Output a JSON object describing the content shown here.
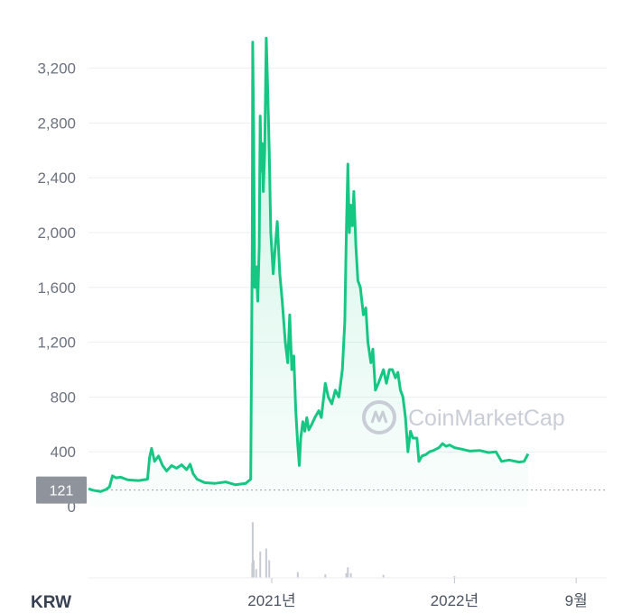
{
  "currency_label": "KRW",
  "watermark": "CoinMarketCap",
  "current_price_label": "121",
  "colors": {
    "line": "#16c784",
    "area_top": "#16c784",
    "grid": "#eceef2",
    "badge": "#8f949c",
    "volume": "#c7ccd4",
    "watermark": "#c9cdd6"
  },
  "icons": {
    "watermark_logo": "coinmarketcap-logo-icon"
  },
  "chart_data": {
    "type": "area",
    "title": "",
    "xlabel": "",
    "ylabel": "",
    "ylim": [
      0,
      3500
    ],
    "yticks": [
      {
        "value": 0,
        "label": "0"
      },
      {
        "value": 400,
        "label": "400"
      },
      {
        "value": 800,
        "label": "800"
      },
      {
        "value": 1200,
        "label": "1,200"
      },
      {
        "value": 1600,
        "label": "1,600"
      },
      {
        "value": 2000,
        "label": "2,000"
      },
      {
        "value": 2400,
        "label": "2,400"
      },
      {
        "value": 2800,
        "label": "2,800"
      },
      {
        "value": 3200,
        "label": "3,200"
      }
    ],
    "x_range": [
      "2020-01-01",
      "2022-11-01"
    ],
    "xticks": [
      {
        "date": "2021-01-01",
        "label": "2021년"
      },
      {
        "date": "2022-01-01",
        "label": "2022년"
      },
      {
        "date": "2022-09-01",
        "label": "9월"
      }
    ],
    "current_value": 121,
    "series": [
      {
        "points": [
          [
            "2020-01-01",
            130
          ],
          [
            "2020-01-10",
            120
          ],
          [
            "2020-01-25",
            110
          ],
          [
            "2020-02-05",
            125
          ],
          [
            "2020-02-12",
            145
          ],
          [
            "2020-02-18",
            225
          ],
          [
            "2020-02-25",
            210
          ],
          [
            "2020-03-05",
            215
          ],
          [
            "2020-03-20",
            195
          ],
          [
            "2020-04-10",
            190
          ],
          [
            "2020-04-28",
            200
          ],
          [
            "2020-05-02",
            360
          ],
          [
            "2020-05-06",
            425
          ],
          [
            "2020-05-12",
            330
          ],
          [
            "2020-05-20",
            370
          ],
          [
            "2020-05-28",
            300
          ],
          [
            "2020-06-05",
            260
          ],
          [
            "2020-06-15",
            300
          ],
          [
            "2020-06-25",
            280
          ],
          [
            "2020-07-05",
            305
          ],
          [
            "2020-07-15",
            270
          ],
          [
            "2020-07-22",
            310
          ],
          [
            "2020-07-28",
            240
          ],
          [
            "2020-08-05",
            200
          ],
          [
            "2020-08-20",
            175
          ],
          [
            "2020-09-10",
            170
          ],
          [
            "2020-10-01",
            180
          ],
          [
            "2020-10-20",
            160
          ],
          [
            "2020-11-10",
            170
          ],
          [
            "2020-11-20",
            200
          ],
          [
            "2020-11-23",
            1900
          ],
          [
            "2020-11-24",
            3390
          ],
          [
            "2020-11-26",
            2700
          ],
          [
            "2020-11-28",
            1600
          ],
          [
            "2020-12-01",
            1750
          ],
          [
            "2020-12-04",
            1500
          ],
          [
            "2020-12-07",
            1900
          ],
          [
            "2020-12-09",
            2850
          ],
          [
            "2020-12-11",
            2450
          ],
          [
            "2020-12-13",
            2650
          ],
          [
            "2020-12-15",
            2300
          ],
          [
            "2020-12-18",
            2600
          ],
          [
            "2020-12-21",
            3420
          ],
          [
            "2020-12-24",
            3050
          ],
          [
            "2020-12-27",
            2600
          ],
          [
            "2020-12-30",
            2000
          ],
          [
            "2021-01-04",
            1700
          ],
          [
            "2021-01-08",
            1900
          ],
          [
            "2021-01-12",
            2080
          ],
          [
            "2021-01-17",
            1700
          ],
          [
            "2021-01-22",
            1500
          ],
          [
            "2021-01-28",
            1200
          ],
          [
            "2021-02-02",
            1050
          ],
          [
            "2021-02-06",
            1400
          ],
          [
            "2021-02-10",
            1000
          ],
          [
            "2021-02-14",
            1100
          ],
          [
            "2021-02-18",
            700
          ],
          [
            "2021-02-22",
            450
          ],
          [
            "2021-02-25",
            300
          ],
          [
            "2021-02-28",
            500
          ],
          [
            "2021-03-04",
            620
          ],
          [
            "2021-03-08",
            550
          ],
          [
            "2021-03-12",
            650
          ],
          [
            "2021-03-16",
            560
          ],
          [
            "2021-03-22",
            600
          ],
          [
            "2021-03-28",
            650
          ],
          [
            "2021-04-05",
            700
          ],
          [
            "2021-04-10",
            650
          ],
          [
            "2021-04-18",
            900
          ],
          [
            "2021-04-24",
            800
          ],
          [
            "2021-05-01",
            750
          ],
          [
            "2021-05-08",
            850
          ],
          [
            "2021-05-15",
            800
          ],
          [
            "2021-05-22",
            1000
          ],
          [
            "2021-05-27",
            1350
          ],
          [
            "2021-05-30",
            2000
          ],
          [
            "2021-06-02",
            2500
          ],
          [
            "2021-06-05",
            2000
          ],
          [
            "2021-06-08",
            2200
          ],
          [
            "2021-06-11",
            2050
          ],
          [
            "2021-06-14",
            2300
          ],
          [
            "2021-06-18",
            1900
          ],
          [
            "2021-06-22",
            1650
          ],
          [
            "2021-06-27",
            1600
          ],
          [
            "2021-07-03",
            1400
          ],
          [
            "2021-07-08",
            1450
          ],
          [
            "2021-07-12",
            1200
          ],
          [
            "2021-07-18",
            1050
          ],
          [
            "2021-07-22",
            1150
          ],
          [
            "2021-07-27",
            850
          ],
          [
            "2021-08-02",
            900
          ],
          [
            "2021-08-07",
            950
          ],
          [
            "2021-08-12",
            1000
          ],
          [
            "2021-08-18",
            900
          ],
          [
            "2021-08-24",
            1000
          ],
          [
            "2021-08-30",
            1000
          ],
          [
            "2021-09-05",
            940
          ],
          [
            "2021-09-10",
            980
          ],
          [
            "2021-09-15",
            850
          ],
          [
            "2021-09-20",
            800
          ],
          [
            "2021-09-25",
            650
          ],
          [
            "2021-09-30",
            400
          ],
          [
            "2021-10-05",
            550
          ],
          [
            "2021-10-10",
            500
          ],
          [
            "2021-10-18",
            500
          ],
          [
            "2021-10-22",
            330
          ],
          [
            "2021-10-28",
            370
          ],
          [
            "2021-11-05",
            380
          ],
          [
            "2021-11-12",
            400
          ],
          [
            "2021-11-20",
            410
          ],
          [
            "2021-12-01",
            430
          ],
          [
            "2021-12-08",
            460
          ],
          [
            "2021-12-15",
            440
          ],
          [
            "2021-12-22",
            450
          ],
          [
            "2022-01-01",
            430
          ],
          [
            "2022-01-15",
            420
          ],
          [
            "2022-02-01",
            405
          ],
          [
            "2022-02-20",
            410
          ],
          [
            "2022-03-10",
            395
          ],
          [
            "2022-03-25",
            400
          ],
          [
            "2022-04-05",
            330
          ],
          [
            "2022-04-20",
            340
          ],
          [
            "2022-05-10",
            325
          ],
          [
            "2022-05-20",
            330
          ],
          [
            "2022-05-28",
            385
          ]
        ]
      }
    ],
    "volume_points": [
      [
        "2020-11-23",
        0.25
      ],
      [
        "2020-11-24",
        0.95
      ],
      [
        "2020-11-26",
        0.3
      ],
      [
        "2020-12-01",
        0.15
      ],
      [
        "2020-12-09",
        0.45
      ],
      [
        "2020-12-21",
        0.5
      ],
      [
        "2020-12-27",
        0.3
      ],
      [
        "2021-02-22",
        0.1
      ],
      [
        "2021-04-18",
        0.06
      ],
      [
        "2021-05-30",
        0.08
      ],
      [
        "2021-06-02",
        0.18
      ],
      [
        "2021-06-08",
        0.08
      ],
      [
        "2021-08-12",
        0.05
      ],
      [
        "2022-01-01",
        0.03
      ]
    ]
  }
}
